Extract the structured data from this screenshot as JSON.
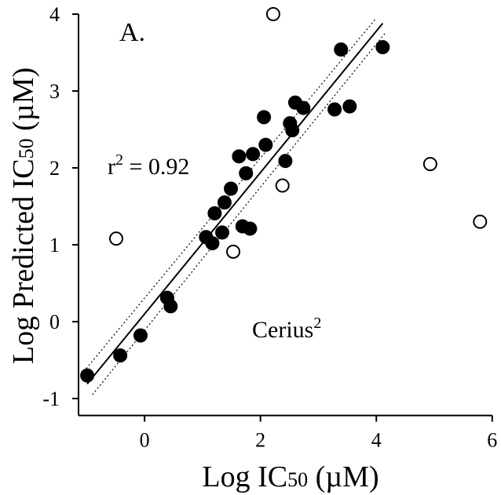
{
  "chart_data": {
    "type": "scatter",
    "panel_label": "A.",
    "x_label": {
      "text": "Log IC",
      "sub": "50",
      "rest": " (µM)"
    },
    "y_label": {
      "text": "Log Predicted IC",
      "sub": "50",
      "rest": " (µM)"
    },
    "annotations": [
      {
        "text": "r",
        "sup": "2",
        "rest": " = 0.92"
      },
      {
        "text": "Cerius",
        "sup": "2"
      }
    ],
    "xlim": [
      -1.14,
      6
    ],
    "xticks": [
      0,
      2,
      4,
      6
    ],
    "ylim": [
      -1.22,
      4
    ],
    "yticks": [
      -1,
      0,
      1,
      2,
      3,
      4
    ],
    "series": [
      {
        "marker": "filled",
        "color": "#000000",
        "x": [
          -0.99,
          -0.42,
          -0.07,
          0.39,
          0.45,
          1.06,
          1.17,
          1.21,
          1.34,
          1.38,
          1.49,
          1.63,
          1.69,
          1.75,
          1.82,
          1.87,
          2.06,
          2.09,
          2.43,
          2.51,
          2.55,
          2.6,
          2.74,
          3.28,
          3.39,
          3.54,
          4.11
        ],
        "values": [
          -0.7,
          -0.44,
          -0.18,
          0.31,
          0.2,
          1.1,
          1.02,
          1.41,
          1.16,
          1.55,
          1.73,
          2.15,
          1.24,
          1.93,
          1.21,
          2.18,
          2.66,
          2.3,
          2.09,
          2.58,
          2.49,
          2.85,
          2.78,
          2.76,
          3.54,
          2.8,
          3.57
        ]
      },
      {
        "marker": "open",
        "color": "#000000",
        "x": [
          -0.49,
          2.22,
          1.53,
          2.38,
          4.93,
          5.79
        ],
        "values": [
          1.08,
          4.0,
          0.91,
          1.77,
          2.05,
          1.3
        ]
      }
    ],
    "lines": [
      {
        "style": "solid",
        "x": [
          -0.99,
          4.11
        ],
        "values": [
          -0.81,
          3.88
        ]
      },
      {
        "style": "dotted",
        "x": [
          -1.05,
          4.0
        ],
        "values": [
          -0.65,
          3.95
        ]
      },
      {
        "style": "dotted",
        "x": [
          -0.9,
          4.15
        ],
        "values": [
          -0.95,
          3.75
        ]
      }
    ]
  }
}
